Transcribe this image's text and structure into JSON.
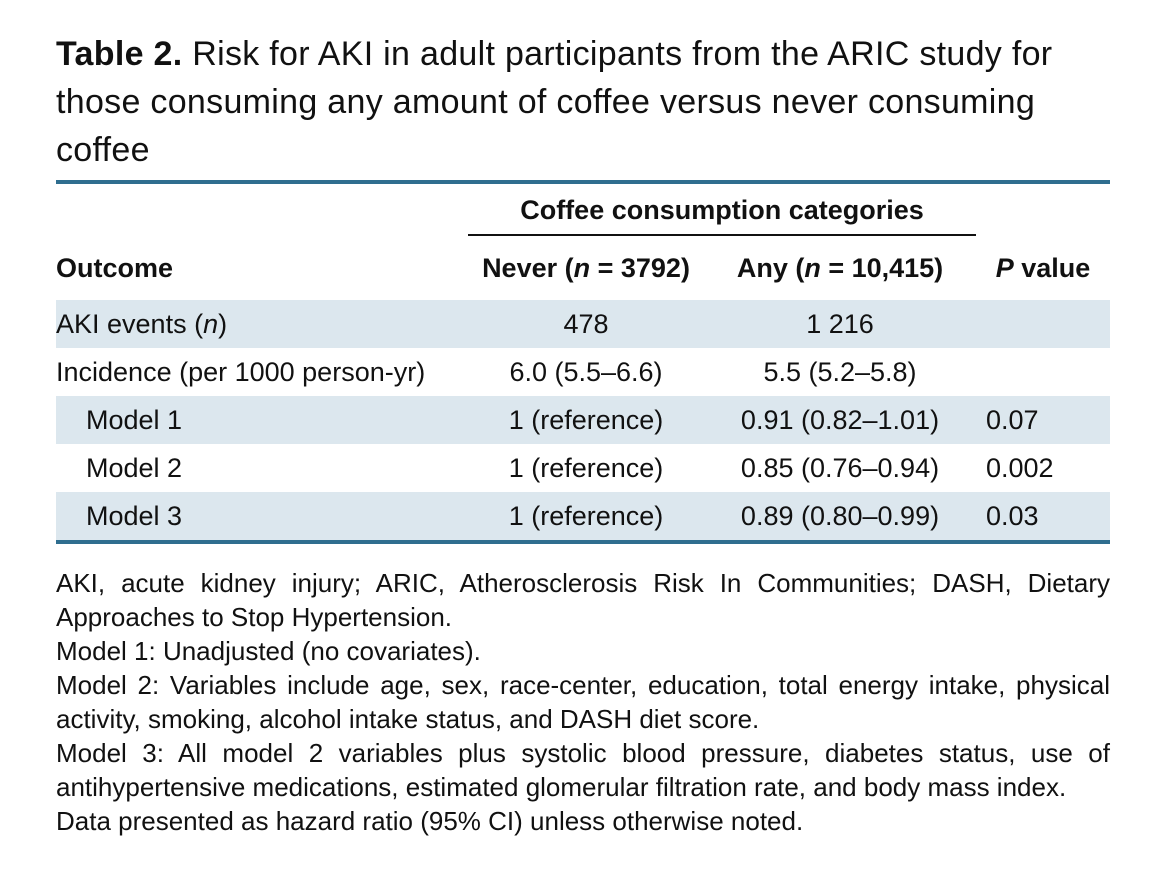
{
  "caption": {
    "label": "Table 2.",
    "text": "Risk for AKI in adult participants from the ARIC study for those consuming any amount of coffee versus never consuming coffee"
  },
  "table": {
    "group_header": "Coffee consumption categories",
    "columns": {
      "outcome": "Outcome",
      "never_prefix": "Never (",
      "never_n": "n",
      "never_suffix": " = 3792)",
      "any_prefix": "Any (",
      "any_n": "n",
      "any_suffix": " = 10,415)",
      "p_italic": "P",
      "p_suffix": " value"
    },
    "rows": [
      {
        "outcome_prefix": "AKI events (",
        "outcome_italic": "n",
        "outcome_suffix": ")",
        "never": "478",
        "any": "1 216",
        "p": ""
      },
      {
        "outcome": "Incidence (per 1000 person-yr)",
        "never": "6.0 (5.5–6.6)",
        "any": "5.5 (5.2–5.8)",
        "p": ""
      },
      {
        "outcome": "Model 1",
        "never": "1 (reference)",
        "any": "0.91 (0.82–1.01)",
        "p": "0.07"
      },
      {
        "outcome": "Model 2",
        "never": "1 (reference)",
        "any": "0.85 (0.76–0.94)",
        "p": "0.002"
      },
      {
        "outcome": "Model 3",
        "never": "1 (reference)",
        "any": "0.89 (0.80–0.99)",
        "p": "0.03"
      }
    ]
  },
  "notes": [
    "AKI, acute kidney injury; ARIC, Atherosclerosis Risk In Communities; DASH, Dietary Approaches to Stop Hypertension.",
    "Model 1: Unadjusted (no covariates).",
    "Model 2: Variables include age, sex, race-center, education, total energy intake, physical activity, smoking, alcohol intake status, and DASH diet score.",
    "Model 3: All model 2 variables plus systolic blood pressure, diabetes status, use of antihypertensive medications, estimated glomerular filtration rate, and body mass index.",
    "Data presented as hazard ratio (95% CI) unless otherwise noted."
  ],
  "colors": {
    "rule": "#2f6e8f",
    "row_shade": "#dce7ee"
  }
}
